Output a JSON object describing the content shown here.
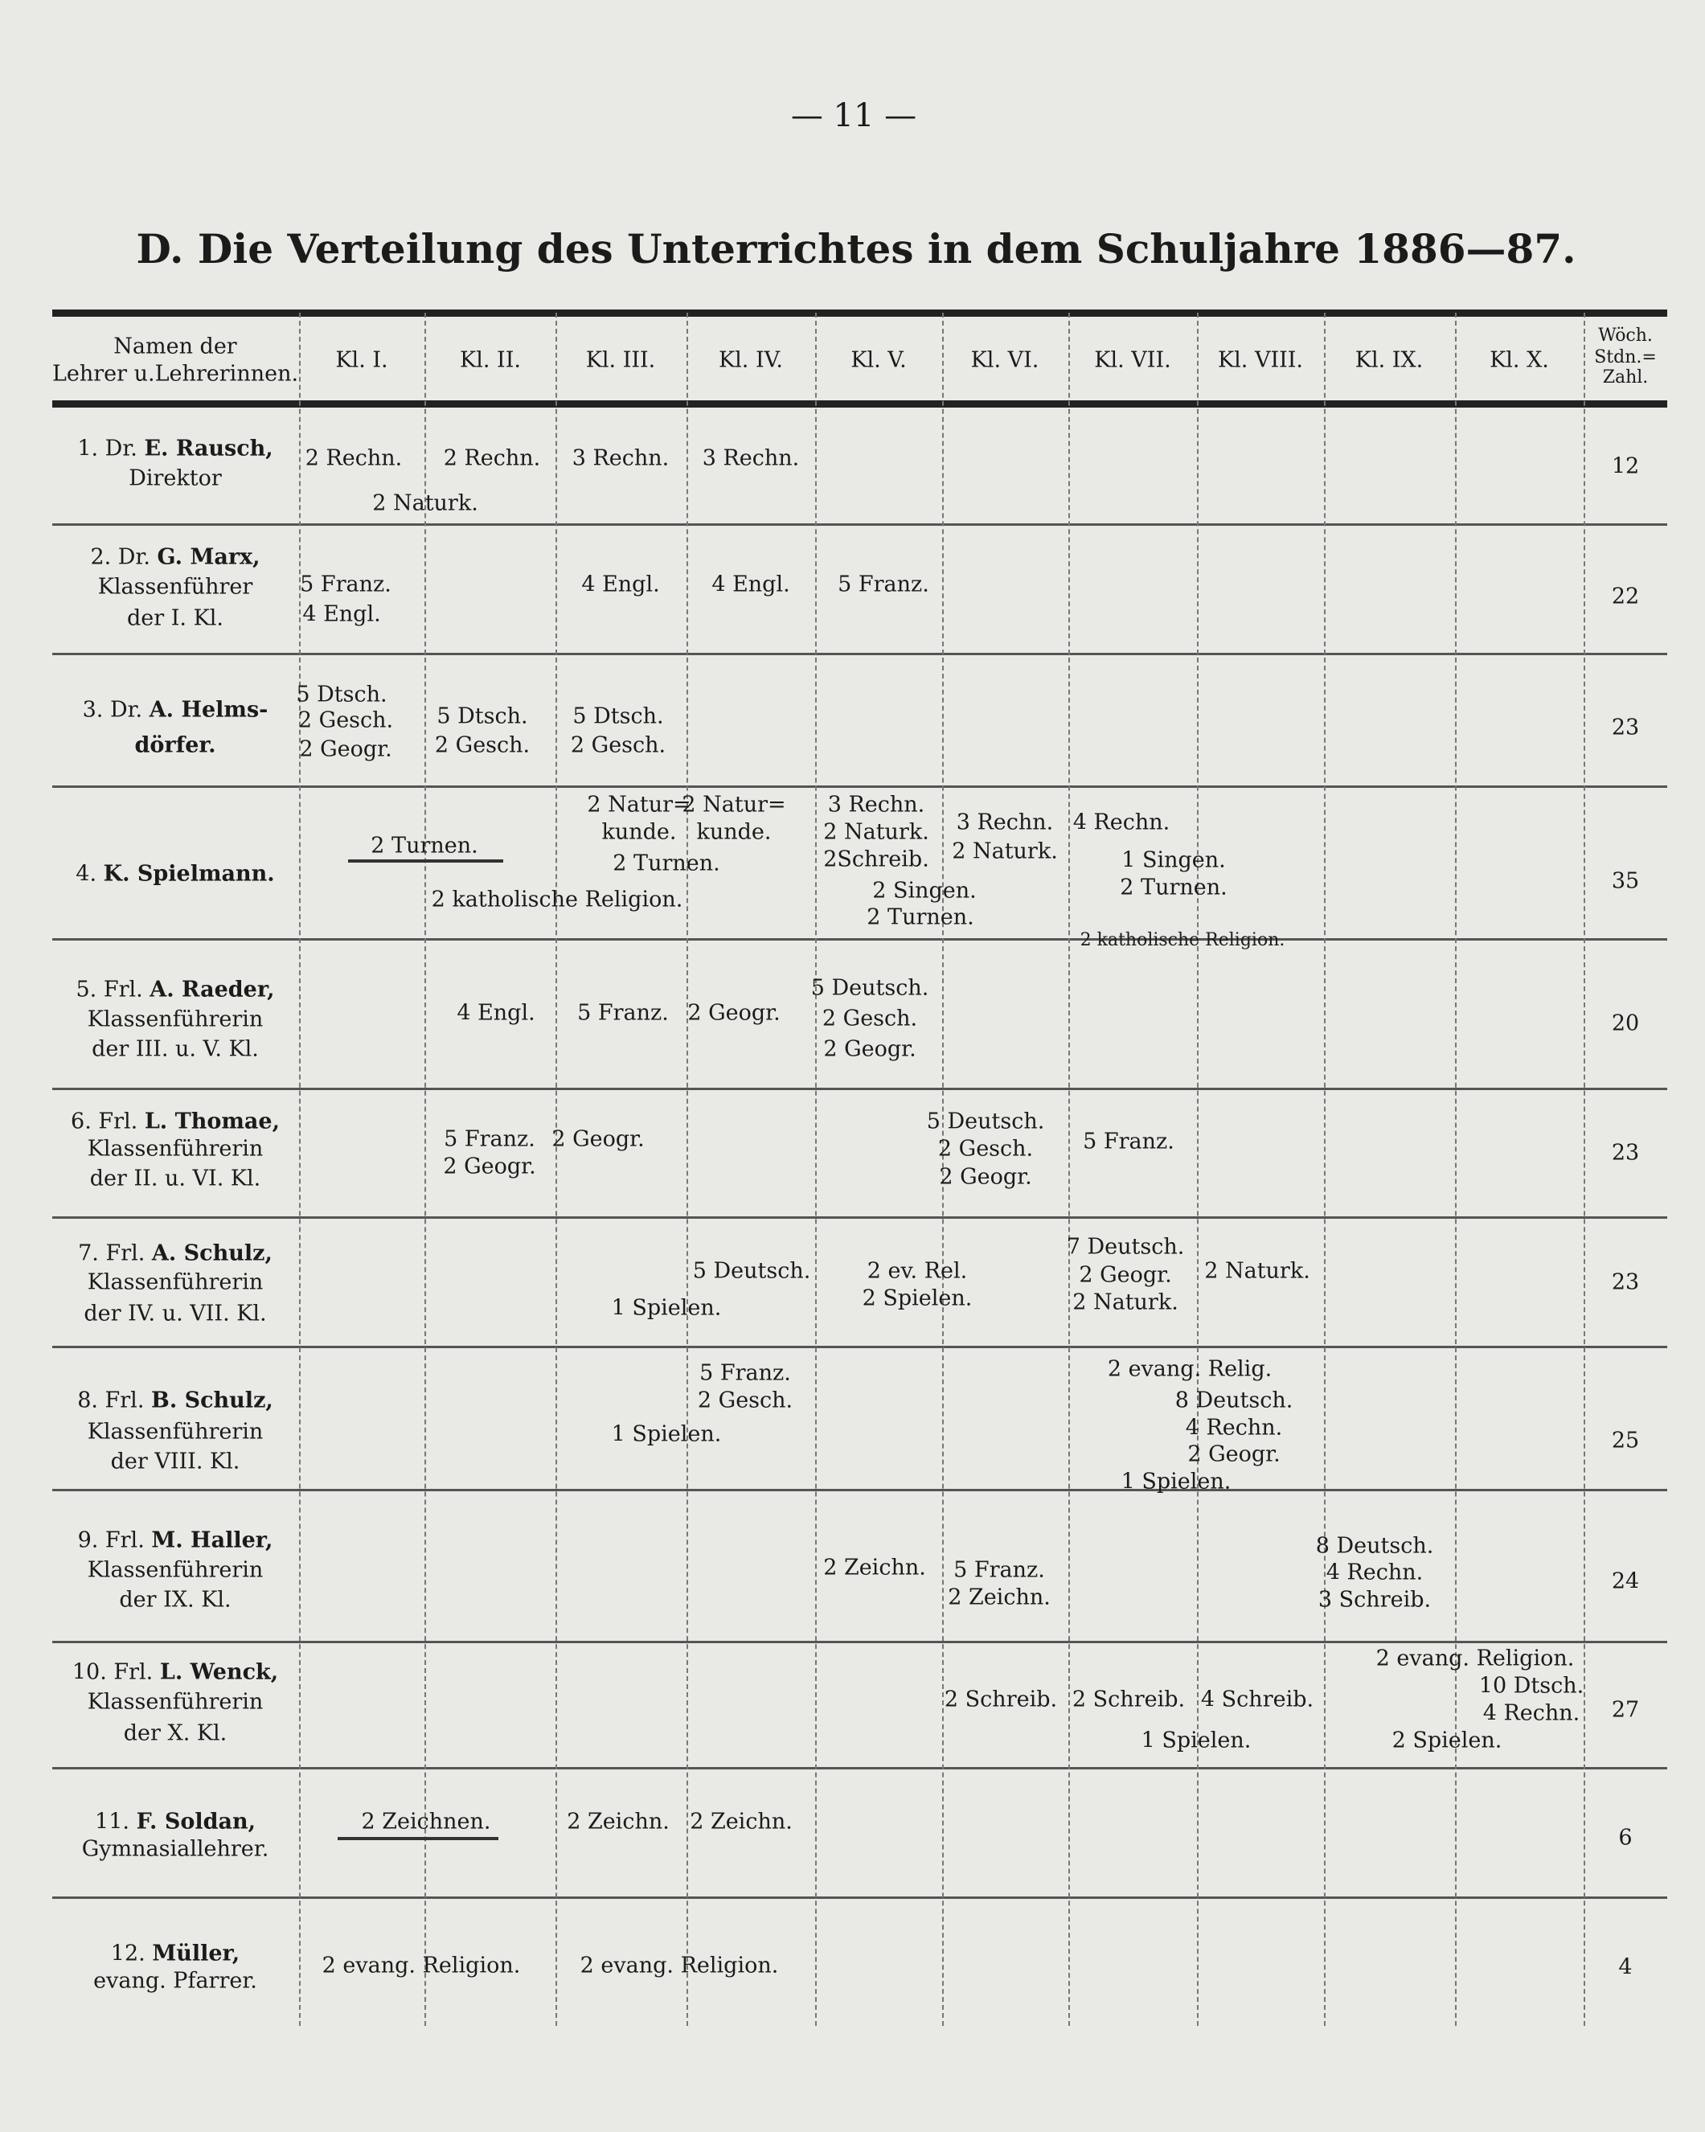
{
  "page_number": "— 11 —",
  "title": "D. Die Verteilung des Unterrichtes in dem Schuljahre 1886—87.",
  "header": {
    "names_line1": "Namen der",
    "names_line2": "Lehrer u.Lehrerinnen.",
    "classes": [
      "Kl. I.",
      "Kl. II.",
      "Kl. III.",
      "Kl. IV.",
      "Kl. V.",
      "Kl. VI.",
      "Kl. VII.",
      "Kl. VIII.",
      "Kl. IX.",
      "Kl. X."
    ],
    "total_line1": "Wöch.",
    "total_line2": "Stdn.=",
    "total_line3": "Zahl."
  },
  "rows": [
    {
      "prefix": "1. Dr.",
      "surname": "E. Rausch,",
      "role": [
        "Direktor"
      ],
      "total": "12",
      "entries": [
        "2 Rechn.",
        "2 Rechn.",
        "3 Rechn.",
        "3 Rechn.",
        "2 Naturk."
      ]
    },
    {
      "prefix": "2. Dr.",
      "surname": "G. Marx,",
      "role": [
        "Klassenführer",
        "der I. Kl."
      ],
      "total": "22",
      "entries": [
        "5 Franz.",
        "4 Engl.",
        "4 Engl.",
        "4 Engl.",
        "5 Franz."
      ]
    },
    {
      "prefix": "3. Dr.",
      "surname": "A. Helms-",
      "role": [
        "dörfer."
      ],
      "total": "23",
      "entries": [
        "5 Dtsch.",
        "2 Gesch.",
        "2 Geogr.",
        "5 Dtsch.",
        "2 Gesch.",
        "5 Dtsch.",
        "2 Gesch."
      ]
    },
    {
      "prefix": "4.",
      "surname": "K. Spielmann.",
      "role": [],
      "total": "35",
      "entries": [
        "2 Turnen.",
        "2 Natur=",
        "kunde.",
        "2 Natur=",
        "kunde.",
        "2 Turnen.",
        "2 katholische Religion.",
        "3 Rechn.",
        "2 Naturk.",
        "2Schreib.",
        "2 Singen.",
        "2 Turnen.",
        "3 Rechn.",
        "2 Naturk.",
        "4 Rechn.",
        "1 Singen.",
        "2 Turnen.",
        "2 katholische Religion."
      ]
    },
    {
      "prefix": "5. Frl.",
      "surname": "A. Raeder,",
      "role": [
        "Klassenführerin",
        "der III. u. V. Kl."
      ],
      "total": "20",
      "entries": [
        "4 Engl.",
        "5 Franz.",
        "2 Geogr.",
        "5 Deutsch.",
        "2 Gesch.",
        "2 Geogr."
      ]
    },
    {
      "prefix": "6. Frl.",
      "surname": "L. Thomae,",
      "role": [
        "Klassenführerin",
        "der II. u. VI. Kl."
      ],
      "total": "23",
      "entries": [
        "5 Franz.",
        "2 Geogr.",
        "2 Geogr.",
        "5 Deutsch.",
        "2 Gesch.",
        "2 Geogr.",
        "5 Franz."
      ]
    },
    {
      "prefix": "7. Frl.",
      "surname": "A. Schulz,",
      "role": [
        "Klassenführerin",
        "der IV. u. VII. Kl."
      ],
      "total": "23",
      "entries": [
        "5 Deutsch.",
        "1 Spielen.",
        "2 ev. Rel.",
        "2 Spielen.",
        "7 Deutsch.",
        "2 Geogr.",
        "2 Naturk.",
        "2 Naturk."
      ]
    },
    {
      "prefix": "8. Frl.",
      "surname": "B. Schulz,",
      "role": [
        "Klassenführerin",
        "der VIII. Kl."
      ],
      "total": "25",
      "entries": [
        "5 Franz.",
        "2 Gesch.",
        "1 Spielen.",
        "2 evang. Relig.",
        "8 Deutsch.",
        "4 Rechn.",
        "2 Geogr.",
        "1 Spielen."
      ]
    },
    {
      "prefix": "9. Frl.",
      "surname": "M. Haller,",
      "role": [
        "Klassenführerin",
        "der IX. Kl."
      ],
      "total": "24",
      "entries": [
        "2 Zeichn.",
        "5 Franz.",
        "2 Zeichn.",
        "8 Deutsch.",
        "4 Rechn.",
        "3 Schreib."
      ]
    },
    {
      "prefix": "10. Frl.",
      "surname": "L. Wenck,",
      "role": [
        "Klassenführerin",
        "der X. Kl."
      ],
      "total": "27",
      "entries": [
        "2 Schreib.",
        "2 Schreib.",
        "4 Schreib.",
        "1 Spielen.",
        "2 evang. Religion.",
        "10 Dtsch.",
        "4 Rechn.",
        "2 Spielen."
      ]
    },
    {
      "prefix": "11.",
      "surname": "F. Soldan,",
      "role": [
        "Gymnasiallehrer."
      ],
      "total": "6",
      "entries": [
        "2 Zeichnen.",
        "2 Zeichn.",
        "2 Zeichn."
      ]
    },
    {
      "prefix": "12.",
      "surname": "Müller,",
      "role": [
        "evang. Pfarrer."
      ],
      "total": "4",
      "entries": [
        "2 evang. Religion.",
        "2 evang. Religion."
      ]
    }
  ]
}
